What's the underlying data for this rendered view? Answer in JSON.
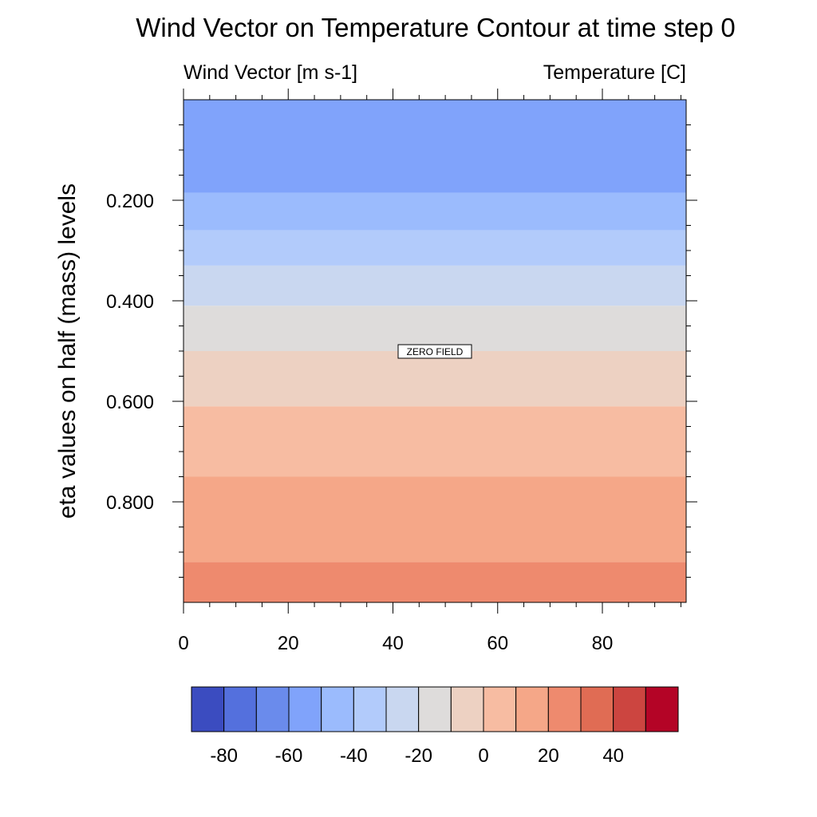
{
  "chart_data": {
    "type": "heatmap",
    "title": "Wind Vector on Temperature Contour at time step 0",
    "left_subtitle": "Wind Vector [m s-1]",
    "right_subtitle": "Temperature [C]",
    "ylabel": "eta values on half (mass) levels",
    "xlabel": "",
    "xlim": [
      0,
      96
    ],
    "ylim": [
      0.0,
      1.0
    ],
    "y_reversed": true,
    "x_major_ticks": [
      0,
      20,
      40,
      60,
      80
    ],
    "x_tick_labels": [
      "0",
      "20",
      "40",
      "60",
      "80"
    ],
    "y_major_ticks": [
      0.2,
      0.4,
      0.6,
      0.8
    ],
    "y_tick_labels": [
      "0.200",
      "0.400",
      "0.600",
      "0.800"
    ],
    "annotation": "ZERO FIELD",
    "bands": [
      {
        "eta_top": 0.0,
        "eta_bottom": 0.185,
        "value_range": [
          -60,
          -50
        ],
        "color": "#80a3fb"
      },
      {
        "eta_top": 0.185,
        "eta_bottom": 0.26,
        "value_range": [
          -50,
          -40
        ],
        "color": "#9bbbfd"
      },
      {
        "eta_top": 0.26,
        "eta_bottom": 0.33,
        "value_range": [
          -40,
          -30
        ],
        "color": "#b2cbfb"
      },
      {
        "eta_top": 0.33,
        "eta_bottom": 0.41,
        "value_range": [
          -30,
          -20
        ],
        "color": "#c9d7f0"
      },
      {
        "eta_top": 0.41,
        "eta_bottom": 0.5,
        "value_range": [
          -20,
          -10
        ],
        "color": "#dedcdb"
      },
      {
        "eta_top": 0.5,
        "eta_bottom": 0.61,
        "value_range": [
          -10,
          0
        ],
        "color": "#edd1c2"
      },
      {
        "eta_top": 0.61,
        "eta_bottom": 0.75,
        "value_range": [
          0,
          10
        ],
        "color": "#f7bca2"
      },
      {
        "eta_top": 0.75,
        "eta_bottom": 0.92,
        "value_range": [
          10,
          20
        ],
        "color": "#f5a788"
      },
      {
        "eta_top": 0.92,
        "eta_bottom": 1.0,
        "value_range": [
          20,
          30
        ],
        "color": "#ee8a6e"
      }
    ],
    "colorbar": {
      "levels": [
        -90,
        -80,
        -70,
        -60,
        -50,
        -40,
        -30,
        -20,
        -10,
        0,
        10,
        20,
        30,
        40,
        50,
        60
      ],
      "colors": [
        "#3b4cc0",
        "#5470dd",
        "#6a8bec",
        "#80a3fb",
        "#9bbbfd",
        "#b2cbfb",
        "#c9d7f0",
        "#dedcdb",
        "#edd1c2",
        "#f7bca2",
        "#f5a788",
        "#ee8a6e",
        "#e06c54",
        "#cc4540",
        "#b40426"
      ],
      "tick_values": [
        -80,
        -60,
        -40,
        -20,
        0,
        20,
        40
      ],
      "tick_labels": [
        "-80",
        "-60",
        "-40",
        "-20",
        "0",
        "20",
        "40"
      ]
    }
  }
}
